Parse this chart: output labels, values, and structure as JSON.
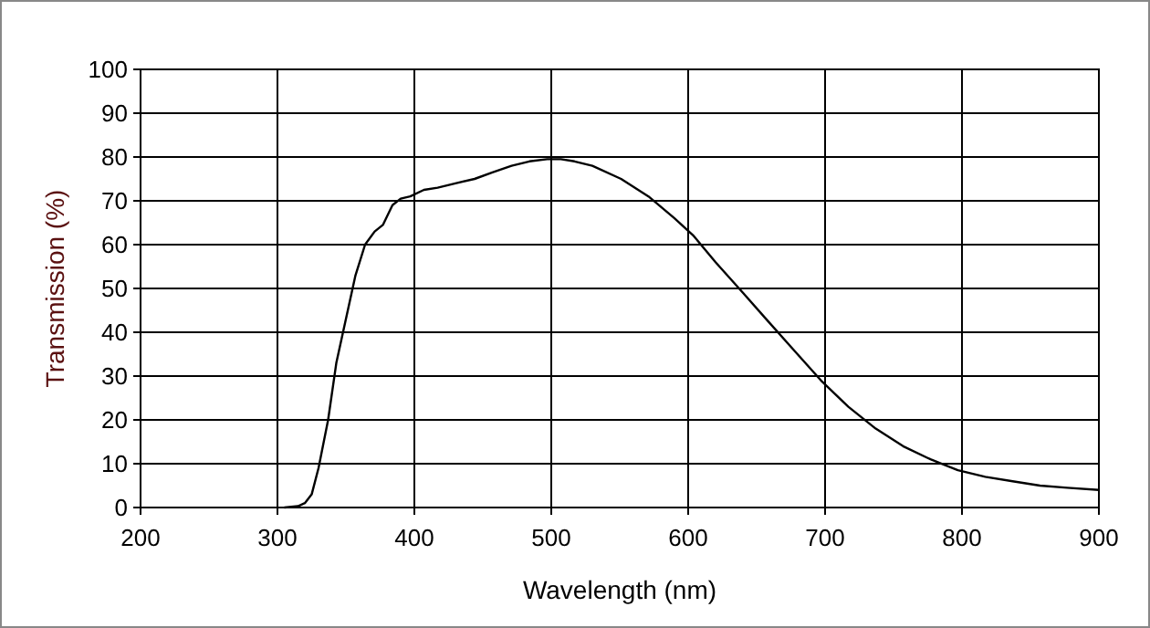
{
  "chart_data": {
    "type": "line",
    "xlabel": "Wavelength (nm)",
    "ylabel": "Transmission (%)",
    "xlim": [
      200,
      900
    ],
    "ylim": [
      0,
      100
    ],
    "xticks": [
      200,
      300,
      400,
      500,
      600,
      700,
      800,
      900
    ],
    "yticks": [
      0,
      10,
      20,
      30,
      40,
      50,
      60,
      70,
      80,
      90,
      100
    ],
    "grid": true,
    "marker": "none",
    "line_style": "solid",
    "series": [
      {
        "color": "#000000",
        "x": [
          305,
          315,
          320,
          325,
          330,
          337,
          343,
          350,
          357,
          364,
          371,
          377,
          384,
          390,
          397,
          407,
          417,
          430,
          444,
          457,
          471,
          484,
          497,
          507,
          517,
          530,
          551,
          571,
          590,
          604,
          620,
          640,
          657,
          677,
          697,
          717,
          737,
          757,
          777,
          797,
          817,
          837,
          857,
          877,
          900
        ],
        "values": [
          0,
          0.3,
          1,
          3,
          9,
          20,
          33,
          43,
          53,
          60,
          63,
          64.5,
          69,
          70.5,
          71,
          72.5,
          73,
          74,
          75,
          76.5,
          78,
          79,
          79.5,
          79.5,
          79,
          78,
          75,
          71,
          66,
          62,
          56,
          49,
          43,
          36,
          29,
          23,
          18,
          14,
          11,
          8.5,
          7,
          6,
          5,
          4.5,
          4
        ]
      }
    ]
  }
}
